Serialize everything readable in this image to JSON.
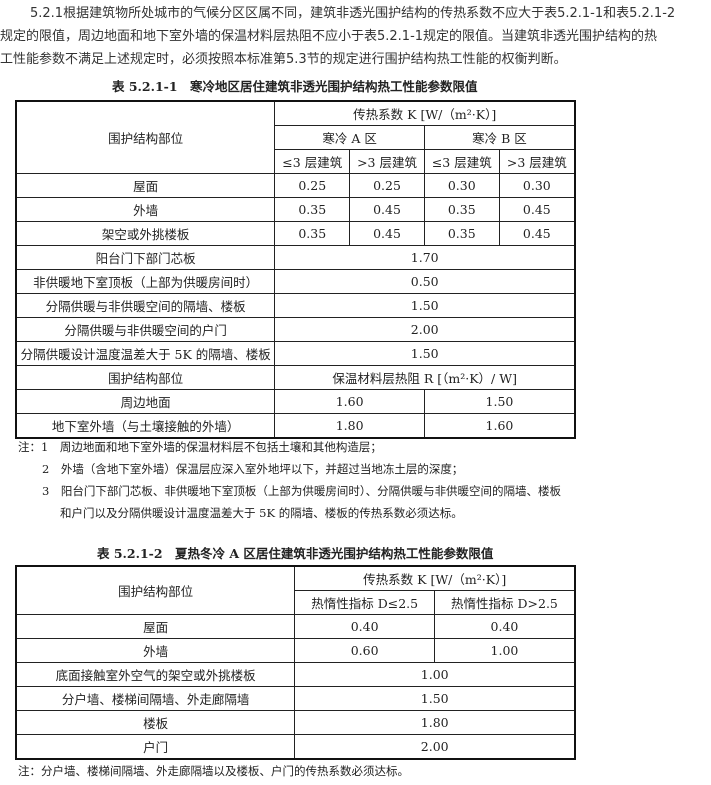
{
  "intro": [
    "5.2.1根据建筑物所处城市的气候分区区属不同，建筑非透光围护结构的传热系数不应大于表5.2.1-1和表5.2.1-2",
    "规定的限值，周边地面和地下室外墙的保温材料层热阻不应小于表5.2.1-1规定的限值。当建筑非透光围护结构的热",
    "工性能参数不满足上述规定时，必须按照本标准第5.3节的规定进行围护结构热工性能的权衡判断。"
  ],
  "table1": {
    "caption": "表 5.2.1-1　寒冷地区居住建筑非透光围护结构热工性能参数限值",
    "h_part": "围护结构部位",
    "h_k": "传热系数 K [W/（m²·K）]",
    "h_a": "寒冷 A 区",
    "h_b": "寒冷 B 区",
    "h_sub": [
      "≤3 层建筑",
      ">3 层建筑",
      "≤3 层建筑",
      ">3 层建筑"
    ],
    "rows4": [
      [
        "屋面",
        "0.25",
        "0.25",
        "0.30",
        "0.30"
      ],
      [
        "外墙",
        "0.35",
        "0.45",
        "0.35",
        "0.45"
      ],
      [
        "架空或外挑楼板",
        "0.35",
        "0.45",
        "0.35",
        "0.45"
      ]
    ],
    "rows1": [
      [
        "阳台门下部门芯板",
        "1.70"
      ],
      [
        "非供暖地下室顶板（上部为供暖房间时）",
        "0.50"
      ],
      [
        "分隔供暖与非供暖空间的隔墙、楼板",
        "1.50"
      ],
      [
        "分隔供暖与非供暖空间的户门",
        "2.00"
      ],
      [
        "分隔供暖设计温度温差大于 5K 的隔墙、楼板",
        "1.50"
      ]
    ],
    "h_part2": "围护结构部位",
    "h_r": "保温材料层热阻 R [（m²·K）/ W]",
    "rows2": [
      [
        "周边地面",
        "1.60",
        "1.50"
      ],
      [
        "地下室外墙（与土壤接触的外墙）",
        "1.80",
        "1.60"
      ]
    ],
    "notes": [
      "注：1　周边地面和地下室外墙的保温材料层不包括土壤和其他构造层；",
      "2　外墙（含地下室外墙）保温层应深入室外地坪以下，并超过当地冻土层的深度；",
      "3　阳台门下部门芯板、非供暖地下室顶板（上部为供暖房间时）、分隔供暖与非供暖空间的隔墙、楼板",
      "和户门以及分隔供暖设计温度温差大于 5K 的隔墙、楼板的传热系数必须达标。"
    ]
  },
  "table2": {
    "caption": "表 5.2.1-2　夏热冬冷 A 区居住建筑非透光围护结构热工性能参数限值",
    "h_part": "围护结构部位",
    "h_k": "传热系数 K [W/（m²·K）]",
    "h_sub": [
      "热惰性指标 D≤2.5",
      "热惰性指标 D>2.5"
    ],
    "rows2": [
      [
        "屋面",
        "0.40",
        "0.40"
      ],
      [
        "外墙",
        "0.60",
        "1.00"
      ]
    ],
    "rows1": [
      [
        "底面接触室外空气的架空或外挑楼板",
        "1.00"
      ],
      [
        "分户墙、楼梯间隔墙、外走廊隔墙",
        "1.50"
      ],
      [
        "楼板",
        "1.80"
      ],
      [
        "户门",
        "2.00"
      ]
    ],
    "note": "注：分户墙、楼梯间隔墙、外走廊隔墙以及楼板、户门的传热系数必须达标。"
  }
}
